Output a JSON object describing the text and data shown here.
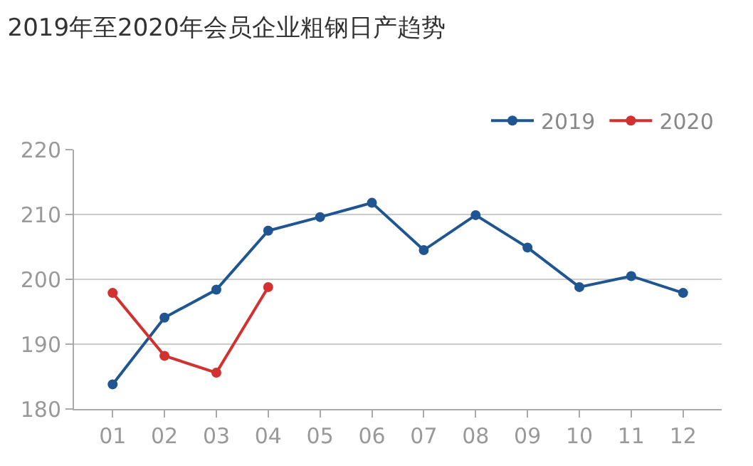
{
  "chart_data": {
    "type": "line",
    "title": "2019年至2020年会员企业粗钢日产趋势",
    "categories": [
      "01",
      "02",
      "03",
      "04",
      "05",
      "06",
      "07",
      "08",
      "09",
      "10",
      "11",
      "12"
    ],
    "series": [
      {
        "name": "2019",
        "color": "#1f5591",
        "values": [
          183.8,
          194.1,
          198.4,
          207.5,
          209.6,
          211.8,
          204.5,
          209.9,
          204.9,
          198.8,
          200.5,
          197.9
        ]
      },
      {
        "name": "2020",
        "color": "#d1312f",
        "values": [
          197.9,
          188.2,
          185.6,
          198.8,
          null,
          null,
          null,
          null,
          null,
          null,
          null,
          null
        ]
      }
    ],
    "ylim": [
      180,
      220
    ],
    "yticks": [
      180,
      190,
      200,
      210,
      220
    ],
    "grid": "y",
    "legend": "top right",
    "marker": "circle",
    "line_style": "solid"
  }
}
